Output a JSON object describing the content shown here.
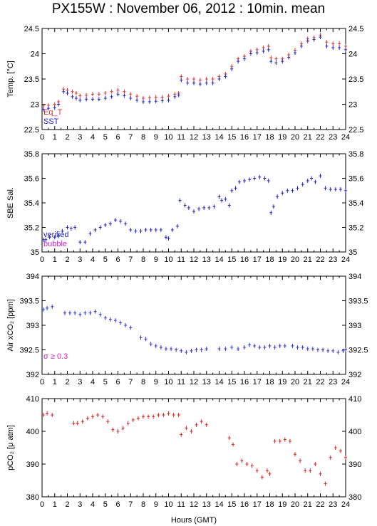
{
  "title": "PX155W : November 06, 2012 : 10min. mean",
  "xlabel": "Hours (GMT)",
  "colors": {
    "eq_t": "#dd3333",
    "sst": "#2222cc",
    "verified": "#2222cc",
    "bubble": "#cc22cc",
    "xco2": "#3333dd",
    "pco2": "#dd2222",
    "axis": "#000000"
  },
  "chart_data": [
    {
      "type": "scatter",
      "ylabel": "Temp. [°C]",
      "ylim": [
        22.5,
        24.5
      ],
      "yticks": [
        "22.5",
        "23",
        "23.5",
        "24",
        "24.5"
      ],
      "xlim": [
        0,
        24
      ],
      "xticks": [
        "0",
        "1",
        "2",
        "3",
        "4",
        "5",
        "6",
        "7",
        "8",
        "9",
        "10",
        "11",
        "12",
        "13",
        "14",
        "15",
        "16",
        "17",
        "18",
        "19",
        "20",
        "21",
        "22",
        "23",
        "24"
      ],
      "legend": [
        {
          "label": "Eq_T",
          "color": "#dd3333"
        },
        {
          "label": "SST",
          "color": "#2222cc"
        }
      ],
      "series": [
        {
          "name": "Eq_T",
          "color": "#dd3333",
          "x": [
            0.1,
            0.5,
            1.0,
            1.3,
            1.7,
            2.0,
            2.4,
            2.7,
            3.0,
            3.5,
            4.0,
            4.5,
            5.0,
            5.5,
            6.0,
            6.5,
            7.0,
            7.5,
            8.0,
            8.5,
            9.0,
            9.5,
            10.0,
            10.5,
            10.8,
            11.0,
            11.5,
            12.0,
            12.5,
            13.0,
            13.5,
            14.0,
            14.5,
            15.0,
            15.5,
            16.0,
            16.5,
            17.0,
            17.5,
            17.9,
            18.1,
            18.5,
            19.0,
            19.5,
            20.0,
            20.5,
            21.0,
            21.5,
            22.0,
            22.5,
            23.0,
            23.5,
            24.0
          ],
          "y": [
            22.97,
            22.98,
            23.0,
            23.05,
            23.3,
            23.28,
            23.25,
            23.22,
            23.17,
            23.18,
            23.2,
            23.2,
            23.22,
            23.25,
            23.28,
            23.25,
            23.2,
            23.16,
            23.12,
            23.13,
            23.14,
            23.14,
            23.16,
            23.2,
            23.22,
            23.55,
            23.5,
            23.5,
            23.48,
            23.5,
            23.5,
            23.55,
            23.6,
            23.75,
            23.9,
            23.95,
            24.05,
            24.08,
            24.12,
            24.15,
            23.92,
            23.9,
            23.9,
            23.98,
            24.07,
            24.2,
            24.3,
            24.32,
            24.37,
            24.23,
            24.2,
            24.2,
            24.15
          ]
        },
        {
          "name": "SST",
          "color": "#2222cc",
          "x": [
            0.1,
            0.5,
            1.0,
            1.3,
            1.7,
            2.0,
            2.4,
            2.7,
            3.0,
            3.5,
            4.0,
            4.5,
            5.0,
            5.5,
            6.0,
            6.5,
            7.0,
            7.5,
            8.0,
            8.5,
            9.0,
            9.5,
            10.0,
            10.5,
            10.8,
            11.0,
            11.5,
            12.0,
            12.5,
            13.0,
            13.5,
            14.0,
            14.5,
            15.0,
            15.5,
            16.0,
            16.5,
            17.0,
            17.5,
            17.9,
            18.1,
            18.5,
            19.0,
            19.5,
            20.0,
            20.5,
            21.0,
            21.5,
            22.0,
            22.5,
            23.0,
            23.5,
            24.0
          ],
          "y": [
            22.9,
            22.92,
            22.93,
            23.0,
            23.25,
            23.22,
            23.15,
            23.12,
            23.08,
            23.1,
            23.1,
            23.1,
            23.12,
            23.15,
            23.2,
            23.17,
            23.12,
            23.08,
            23.05,
            23.05,
            23.06,
            23.07,
            23.08,
            23.15,
            23.18,
            23.48,
            23.42,
            23.42,
            23.4,
            23.42,
            23.42,
            23.5,
            23.55,
            23.7,
            23.85,
            23.9,
            24.0,
            24.02,
            24.05,
            24.08,
            23.85,
            23.82,
            23.85,
            23.93,
            24.02,
            24.15,
            24.25,
            24.28,
            24.33,
            24.15,
            24.12,
            24.12,
            24.08
          ]
        }
      ]
    },
    {
      "type": "scatter",
      "ylabel": "SBE Sal.",
      "ylim": [
        35.0,
        35.8
      ],
      "yticks": [
        "35",
        "35.2",
        "35.4",
        "35.6",
        "35.8"
      ],
      "xlim": [
        0,
        24
      ],
      "xticks": [
        "0",
        "1",
        "2",
        "3",
        "4",
        "5",
        "6",
        "7",
        "8",
        "9",
        "10",
        "11",
        "12",
        "13",
        "14",
        "15",
        "16",
        "17",
        "18",
        "19",
        "20",
        "21",
        "22",
        "23",
        "24"
      ],
      "legend": [
        {
          "label": "verified",
          "color": "#2222cc"
        },
        {
          "label": "bubble",
          "color": "#cc22cc"
        }
      ],
      "series": [
        {
          "name": "verified",
          "color": "#2222cc",
          "x": [
            0.1,
            0.3,
            0.6,
            1.0,
            1.3,
            1.6,
            2.0,
            2.3,
            2.6,
            3.0,
            3.4,
            3.8,
            4.2,
            4.6,
            5.0,
            5.4,
            5.8,
            6.2,
            6.6,
            7.0,
            7.4,
            7.8,
            8.2,
            8.6,
            9.0,
            9.4,
            9.8,
            10.0,
            10.3,
            10.7,
            10.9,
            11.3,
            11.6,
            12.0,
            12.4,
            12.8,
            13.2,
            13.6,
            14.0,
            14.2,
            14.5,
            14.8,
            15.0,
            15.3,
            15.6,
            16.0,
            16.4,
            16.8,
            17.2,
            17.6,
            17.9,
            18.1,
            18.3,
            18.6,
            19.0,
            19.4,
            19.8,
            20.2,
            20.6,
            21.0,
            21.3,
            21.6,
            22.0,
            22.4,
            22.8,
            23.2,
            23.6,
            24.0
          ],
          "y": [
            35.1,
            35.1,
            35.12,
            35.12,
            35.13,
            35.17,
            35.2,
            35.19,
            35.2,
            35.08,
            35.08,
            35.15,
            35.18,
            35.2,
            35.22,
            35.23,
            35.26,
            35.25,
            35.23,
            35.18,
            35.17,
            35.17,
            35.18,
            35.18,
            35.18,
            35.18,
            35.12,
            35.11,
            35.18,
            35.21,
            35.42,
            35.38,
            35.36,
            35.33,
            35.35,
            35.36,
            35.36,
            35.37,
            35.45,
            35.42,
            35.43,
            35.38,
            35.5,
            35.52,
            35.57,
            35.58,
            35.59,
            35.6,
            35.61,
            35.6,
            35.58,
            35.32,
            35.37,
            35.45,
            35.48,
            35.5,
            35.5,
            35.52,
            35.55,
            35.58,
            35.6,
            35.57,
            35.62,
            35.52,
            35.51,
            35.51,
            35.51,
            35.5
          ]
        },
        {
          "name": "bubble",
          "color": "#cc22cc",
          "x": [],
          "y": []
        }
      ]
    },
    {
      "type": "scatter",
      "ylabel": "Air xCO₂ [ppm]",
      "ylim": [
        392.0,
        394.0
      ],
      "yticks": [
        "392",
        "392.5",
        "393",
        "393.5",
        "394"
      ],
      "xlim": [
        0,
        24
      ],
      "xticks": [
        "0",
        "1",
        "2",
        "3",
        "4",
        "5",
        "6",
        "7",
        "8",
        "9",
        "10",
        "11",
        "12",
        "13",
        "14",
        "15",
        "16",
        "17",
        "18",
        "19",
        "20",
        "21",
        "22",
        "23",
        "24"
      ],
      "annotation": "σ ≥ 0.3",
      "series": [
        {
          "name": "Air xCO2",
          "color": "#3333dd",
          "x": [
            0.1,
            0.4,
            0.8,
            1.8,
            2.2,
            2.6,
            3.0,
            3.4,
            3.8,
            4.2,
            4.6,
            5.0,
            5.4,
            5.8,
            6.2,
            6.6,
            7.0,
            7.8,
            8.2,
            8.6,
            9.0,
            9.4,
            9.8,
            10.2,
            10.6,
            11.0,
            11.4,
            11.8,
            12.2,
            12.6,
            13.0,
            14.0,
            14.5,
            15.0,
            15.5,
            16.0,
            16.4,
            16.8,
            17.2,
            17.6,
            18.0,
            18.4,
            18.8,
            19.2,
            19.8,
            20.2,
            20.6,
            21.0,
            21.4,
            21.8,
            22.2,
            22.6,
            23.0,
            23.4,
            23.8,
            24.0
          ],
          "y": [
            393.32,
            393.35,
            393.38,
            393.25,
            393.25,
            393.25,
            393.22,
            393.25,
            393.25,
            393.28,
            393.22,
            393.15,
            393.12,
            393.1,
            393.05,
            393.0,
            392.95,
            392.75,
            392.72,
            392.62,
            392.58,
            392.55,
            392.52,
            392.52,
            392.5,
            392.48,
            392.45,
            392.48,
            392.5,
            392.5,
            392.52,
            392.52,
            392.52,
            392.55,
            392.52,
            392.55,
            392.6,
            392.58,
            392.55,
            392.55,
            392.58,
            392.55,
            392.58,
            392.58,
            392.58,
            392.55,
            392.55,
            392.52,
            392.52,
            392.5,
            392.5,
            392.48,
            392.48,
            392.45,
            392.48,
            392.5
          ]
        }
      ]
    },
    {
      "type": "scatter",
      "ylabel": "pCO₂ [μ atm]",
      "ylim": [
        380,
        410
      ],
      "yticks": [
        "380",
        "390",
        "400",
        "410"
      ],
      "xlim": [
        0,
        24
      ],
      "xticks": [
        "0",
        "1",
        "2",
        "3",
        "4",
        "5",
        "6",
        "7",
        "8",
        "9",
        "10",
        "11",
        "12",
        "13",
        "14",
        "15",
        "16",
        "17",
        "18",
        "19",
        "20",
        "21",
        "22",
        "23",
        "24"
      ],
      "series": [
        {
          "name": "pCO2",
          "color": "#dd2222",
          "x": [
            0.1,
            0.4,
            0.8,
            2.5,
            2.8,
            3.2,
            3.6,
            4.0,
            4.4,
            4.8,
            5.2,
            5.6,
            6.0,
            6.4,
            6.8,
            7.2,
            7.6,
            8.0,
            8.4,
            8.8,
            9.2,
            9.6,
            10.0,
            10.4,
            10.8,
            11.0,
            11.4,
            11.8,
            12.2,
            12.6,
            13.0,
            14.8,
            15.1,
            15.4,
            15.8,
            16.2,
            16.6,
            17.0,
            17.4,
            17.8,
            18.0,
            18.4,
            18.8,
            19.2,
            19.6,
            20.0,
            20.4,
            20.8,
            21.2,
            21.6,
            22.0,
            22.4,
            22.8,
            23.2,
            23.6,
            24.0
          ],
          "y": [
            405,
            405.5,
            405,
            402.5,
            402.5,
            403,
            404,
            404.5,
            405,
            404.5,
            403,
            400.5,
            400,
            401,
            402.5,
            403.5,
            404,
            404.5,
            404.5,
            404.5,
            405,
            405,
            405.5,
            405,
            405,
            399,
            401,
            400,
            402,
            403,
            402,
            398,
            396,
            390,
            391,
            390,
            389.5,
            388,
            386,
            388,
            387,
            397,
            397,
            397.5,
            397,
            393,
            391,
            388,
            388,
            390,
            387,
            384,
            392,
            395,
            394,
            392
          ]
        }
      ]
    }
  ]
}
